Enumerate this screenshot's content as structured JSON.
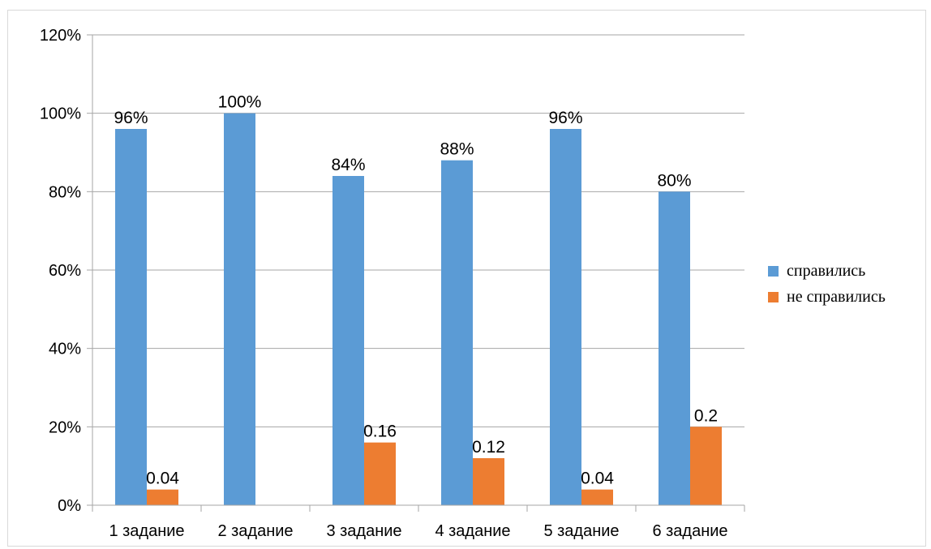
{
  "chart_data": {
    "type": "bar",
    "categories": [
      "1 задание",
      "2 задание",
      "3 задание",
      "4 задание",
      "5 задание",
      "6 задание"
    ],
    "series": [
      {
        "name": "справились",
        "values": [
          0.96,
          1.0,
          0.84,
          0.88,
          0.96,
          0.8
        ],
        "labels": [
          "96%",
          "100%",
          "84%",
          "88%",
          "96%",
          "80%"
        ],
        "color": "#5b9bd5"
      },
      {
        "name": "не справились",
        "values": [
          0.04,
          0,
          0.16,
          0.12,
          0.04,
          0.2
        ],
        "labels": [
          "0.04",
          "",
          "0.16",
          "0.12",
          "0.04",
          "0.2"
        ],
        "color": "#ed7d31"
      }
    ],
    "yticks": [
      "0%",
      "20%",
      "40%",
      "60%",
      "80%",
      "100%",
      "120%"
    ],
    "ylim": [
      0,
      1.2
    ],
    "grid": true,
    "legend_position": "right"
  }
}
